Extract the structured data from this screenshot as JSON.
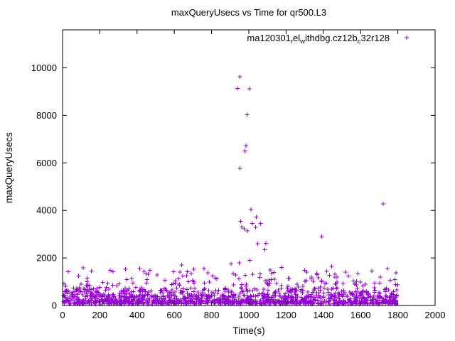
{
  "figure": {
    "title": "maxQueryUsecs vs Time for qr500.L3",
    "xlabel": "Time(s)",
    "ylabel": "maxQueryUsecs",
    "marker_color": "#9400d3",
    "axis_color": "#000000",
    "background_color": "#ffffff",
    "legend_segments": [
      {
        "t": "ma120301",
        "sub": false
      },
      {
        "t": "r",
        "sub": true
      },
      {
        "t": "el",
        "sub": false
      },
      {
        "t": "w",
        "sub": true
      },
      {
        "t": "ithdbg.cz12b",
        "sub": false
      },
      {
        "t": "c",
        "sub": true
      },
      {
        "t": "32r128",
        "sub": false
      }
    ]
  },
  "chart_data": {
    "type": "scatter",
    "title": "maxQueryUsecs vs Time for qr500.L3",
    "xlabel": "Time(s)",
    "ylabel": "maxQueryUsecs",
    "series_name": "ma120301_rel_withdbg.cz12b_c32r128",
    "legend_position": "top-right-inside",
    "grid": false,
    "marker": "plus",
    "marker_size": 3,
    "xlim": [
      0,
      2000
    ],
    "ylim": [
      0,
      11600
    ],
    "xticks": [
      0,
      200,
      400,
      600,
      800,
      1000,
      1200,
      1400,
      1600,
      1800,
      2000
    ],
    "yticks": [
      0,
      2000,
      4000,
      6000,
      8000,
      10000
    ],
    "outliers": [
      [
        952,
        9620
      ],
      [
        938,
        9130
      ],
      [
        1004,
        9120
      ],
      [
        990,
        8020
      ],
      [
        984,
        6730
      ],
      [
        979,
        6500
      ],
      [
        953,
        5770
      ],
      [
        1012,
        4030
      ],
      [
        1040,
        3720
      ],
      [
        957,
        3550
      ],
      [
        1020,
        3460
      ],
      [
        1063,
        3450
      ],
      [
        962,
        3310
      ],
      [
        1036,
        3290
      ],
      [
        976,
        3230
      ],
      [
        992,
        3140
      ],
      [
        1048,
        2600
      ],
      [
        1092,
        2620
      ],
      [
        1085,
        2350
      ],
      [
        1005,
        1900
      ],
      [
        948,
        1800
      ],
      [
        1392,
        2900
      ],
      [
        1722,
        4270
      ],
      [
        30,
        1420
      ],
      [
        110,
        1580
      ],
      [
        155,
        1450
      ],
      [
        255,
        1480
      ],
      [
        338,
        1530
      ],
      [
        415,
        1560
      ],
      [
        470,
        1480
      ],
      [
        640,
        1700
      ],
      [
        705,
        1520
      ],
      [
        760,
        1560
      ],
      [
        905,
        1750
      ],
      [
        1115,
        1490
      ],
      [
        1175,
        1600
      ],
      [
        1300,
        1480
      ],
      [
        1445,
        1650
      ],
      [
        1520,
        1400
      ],
      [
        1585,
        1350
      ],
      [
        1660,
        1450
      ],
      [
        1745,
        1560
      ],
      [
        1790,
        1380
      ]
    ],
    "band_layers": [
      {
        "count": 520,
        "x": [
          2,
          1800
        ],
        "y": [
          55,
          200
        ]
      },
      {
        "count": 420,
        "x": [
          2,
          1800
        ],
        "y": [
          180,
          420
        ]
      },
      {
        "count": 300,
        "x": [
          2,
          1800
        ],
        "y": [
          380,
          700
        ]
      },
      {
        "count": 70,
        "x": [
          5,
          1800
        ],
        "y": [
          700,
          950
        ]
      },
      {
        "count": 80,
        "x": [
          5,
          1800
        ],
        "y": [
          900,
          1450
        ]
      }
    ],
    "seed": 42
  }
}
